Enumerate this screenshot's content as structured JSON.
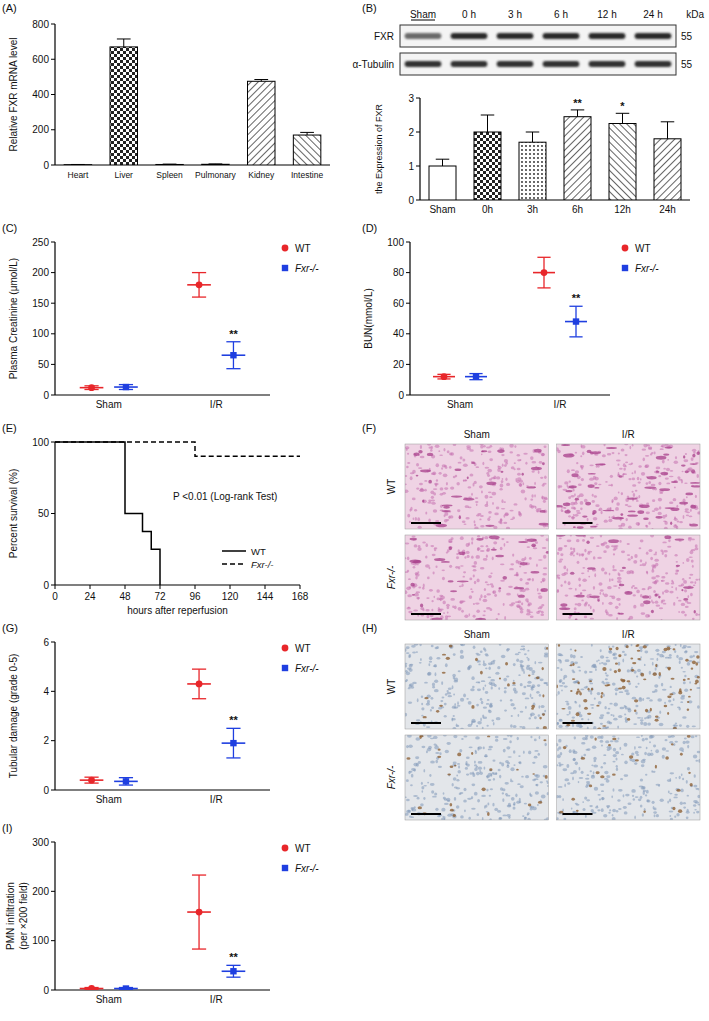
{
  "chart_data": [
    {
      "type": "bar",
      "title": "(A)",
      "categories": [
        "Heart",
        "Liver",
        "Spleen",
        "Pulmonary",
        "Kidney",
        "Intestine"
      ],
      "values": [
        2,
        670,
        3,
        4,
        475,
        170
      ],
      "errors": [
        1,
        45,
        2,
        2,
        10,
        15
      ],
      "y_label": "Relative FXR mRNA level",
      "ylim": [
        0,
        800
      ],
      "yticks": [
        0,
        200,
        400,
        600,
        800
      ]
    },
    {
      "type": "bar",
      "title": "(B)",
      "categories": [
        "Sham",
        "0h",
        "3h",
        "6h",
        "12h",
        "24h"
      ],
      "values": [
        1.0,
        2.0,
        1.7,
        2.45,
        2.25,
        1.8
      ],
      "errors": [
        0.2,
        0.5,
        0.3,
        0.2,
        0.3,
        0.5
      ],
      "y_label": "the Expression of FXR",
      "ylim": [
        0,
        3
      ],
      "yticks": [
        0,
        1,
        2,
        3
      ],
      "annotations": [
        {
          "x": "6h",
          "text": "**"
        },
        {
          "x": "12h",
          "text": "*"
        }
      ]
    },
    {
      "type": "dot",
      "title": "(C)",
      "categories": [
        "Sham",
        "I/R"
      ],
      "series": [
        {
          "name": "WT",
          "color": "#e8262a",
          "marker": "circle",
          "values": [
            12,
            180
          ],
          "errors": [
            3,
            20
          ]
        },
        {
          "name": "Fxr-/-",
          "color": "#1f3fe0",
          "marker": "square",
          "values": [
            13,
            65
          ],
          "errors": [
            4,
            22
          ]
        }
      ],
      "y_label": "Plasma Creatinine (μmol/L)",
      "ylim": [
        0,
        250
      ],
      "yticks": [
        0,
        50,
        100,
        150,
        200,
        250
      ],
      "legend": "right",
      "annotations": [
        {
          "x": "I/R",
          "series": "Fxr-/-",
          "text": "**"
        }
      ]
    },
    {
      "type": "dot",
      "title": "(D)",
      "categories": [
        "Sham",
        "I/R"
      ],
      "series": [
        {
          "name": "WT",
          "color": "#e8262a",
          "marker": "circle",
          "values": [
            12,
            80
          ],
          "errors": [
            1.5,
            10
          ]
        },
        {
          "name": "Fxr-/-",
          "color": "#1f3fe0",
          "marker": "square",
          "values": [
            12,
            48
          ],
          "errors": [
            2,
            10
          ]
        }
      ],
      "y_label": "BUN(mmol/L)",
      "ylim": [
        0,
        100
      ],
      "yticks": [
        0,
        20,
        40,
        60,
        80,
        100
      ],
      "legend": "right",
      "annotations": [
        {
          "x": "I/R",
          "series": "Fxr-/-",
          "text": "**"
        }
      ]
    },
    {
      "type": "step",
      "title": "(E)",
      "series": [
        {
          "name": "WT",
          "color": "#000000",
          "line_style": "solid",
          "x": [
            0,
            48,
            60,
            66,
            72
          ],
          "values": [
            100,
            50,
            37.5,
            25,
            0
          ]
        },
        {
          "name": "Fxr-/-",
          "color": "#000000",
          "line_style": "dashed",
          "x": [
            0,
            96,
            168
          ],
          "values": [
            100,
            90,
            90
          ]
        }
      ],
      "x_label": "hours after reperfusion",
      "y_label": "Percent survival (%)",
      "xlim": [
        0,
        168
      ],
      "xticks": [
        0,
        24,
        48,
        72,
        96,
        120,
        144,
        168
      ],
      "ylim": [
        0,
        100
      ],
      "yticks": [
        0,
        50,
        100
      ],
      "legend": "lower right",
      "annotations": [
        {
          "text": "P <0.01 (Log-rank Test)"
        }
      ]
    },
    {
      "type": "dot",
      "title": "(G)",
      "categories": [
        "Sham",
        "I/R"
      ],
      "series": [
        {
          "name": "WT",
          "color": "#e8262a",
          "marker": "circle",
          "values": [
            0.4,
            4.3
          ],
          "errors": [
            0.12,
            0.6
          ]
        },
        {
          "name": "Fxr-/-",
          "color": "#1f3fe0",
          "marker": "square",
          "values": [
            0.35,
            1.9
          ],
          "errors": [
            0.15,
            0.6
          ]
        }
      ],
      "y_label": "Tubular damage (grade 0-5)",
      "ylim": [
        0,
        6
      ],
      "yticks": [
        0,
        2,
        4,
        6
      ],
      "legend": "right",
      "annotations": [
        {
          "x": "I/R",
          "series": "Fxr-/-",
          "text": "**"
        }
      ]
    },
    {
      "type": "dot",
      "title": "(I)",
      "categories": [
        "Sham",
        "I/R"
      ],
      "series": [
        {
          "name": "WT",
          "color": "#e8262a",
          "marker": "circle",
          "values": [
            3,
            158
          ],
          "errors": [
            2,
            75
          ]
        },
        {
          "name": "Fxr-/-",
          "color": "#1f3fe0",
          "marker": "square",
          "values": [
            3,
            38
          ],
          "errors": [
            2,
            12
          ]
        }
      ],
      "y_label": [
        "PMN infiltration",
        "(per ×200 field)"
      ],
      "ylim": [
        0,
        300
      ],
      "yticks": [
        0,
        100,
        200,
        300
      ],
      "legend": "right",
      "annotations": [
        {
          "x": "I/R",
          "series": "Fxr-/-",
          "text": "**"
        }
      ]
    }
  ],
  "blot": {
    "lanes": [
      "Sham",
      "0 h",
      "3 h",
      "6 h",
      "12 h",
      "24 h"
    ],
    "bands": [
      "FXR",
      "α-Tubulin"
    ],
    "marker_kda": [
      55,
      55
    ],
    "unit": "kDa"
  },
  "images": [
    {
      "title": "(F)",
      "columns": [
        "Sham",
        "I/R"
      ],
      "rows": [
        "WT",
        "Fxr-/-"
      ]
    },
    {
      "title": "(H)",
      "columns": [
        "Sham",
        "I/R"
      ],
      "rows": [
        "WT",
        "Fxr-/-"
      ]
    }
  ]
}
